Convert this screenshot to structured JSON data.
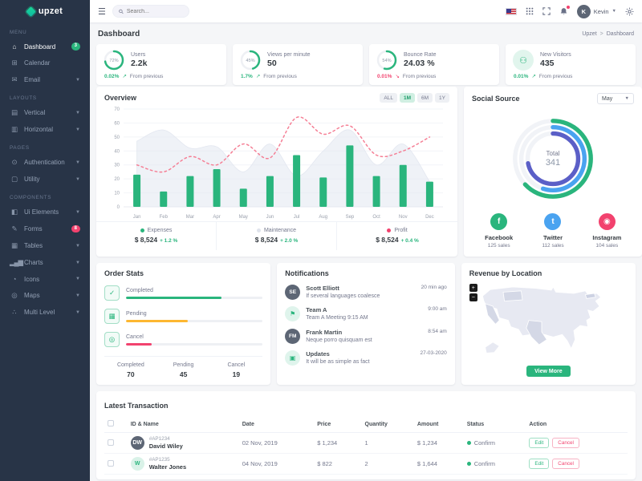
{
  "app": {
    "name": "upzet"
  },
  "colors": {
    "accent": "#2ab57d",
    "danger": "#f2426e",
    "warning": "#fdb731",
    "info": "#4aa3f0",
    "indigo": "#5b5fc7",
    "sidebar_bg": "#283447"
  },
  "topbar": {
    "search_placeholder": "Search...",
    "user_name": "Kevin"
  },
  "sidebar": {
    "sections": [
      {
        "title": "Menu",
        "items": [
          {
            "label": "Dashboard",
            "icon": "home-icon",
            "glyph": "⌂",
            "badge": "3",
            "badge_color": "#2ab57d",
            "active": true
          },
          {
            "label": "Calendar",
            "icon": "calendar-icon",
            "glyph": "⊞"
          },
          {
            "label": "Email",
            "icon": "mail-icon",
            "glyph": "✉",
            "chevron": true
          }
        ]
      },
      {
        "title": "Layouts",
        "items": [
          {
            "label": "Vertical",
            "icon": "layout-vertical-icon",
            "glyph": "▤",
            "chevron": true
          },
          {
            "label": "Horizontal",
            "icon": "layout-horizontal-icon",
            "glyph": "▥",
            "chevron": true
          }
        ]
      },
      {
        "title": "Pages",
        "items": [
          {
            "label": "Authentication",
            "icon": "authentication-icon",
            "glyph": "⊙",
            "chevron": true
          },
          {
            "label": "Utility",
            "icon": "utility-icon",
            "glyph": "▢",
            "chevron": true
          }
        ]
      },
      {
        "title": "Components",
        "items": [
          {
            "label": "Ui Elements",
            "icon": "ui-elements-icon",
            "glyph": "◧",
            "chevron": true
          },
          {
            "label": "Forms",
            "icon": "forms-icon",
            "glyph": "✎",
            "badge": "8",
            "badge_color": "#f2426e"
          },
          {
            "label": "Tables",
            "icon": "tables-icon",
            "glyph": "▦",
            "chevron": true
          },
          {
            "label": "Charts",
            "icon": "charts-icon",
            "glyph": "▂▄▆",
            "chevron": true
          },
          {
            "label": "Icons",
            "icon": "icons-icon",
            "glyph": "◔",
            "chevron": true
          },
          {
            "label": "Maps",
            "icon": "maps-icon",
            "glyph": "◎",
            "chevron": true
          },
          {
            "label": "Multi Level",
            "icon": "multi-level-icon",
            "glyph": "∴",
            "chevron": true
          }
        ]
      }
    ]
  },
  "page": {
    "title": "Dashboard",
    "breadcrumb": {
      "brand": "Upzet",
      "separator": ">",
      "current": "Dashboard"
    }
  },
  "stats": [
    {
      "label": "Users",
      "value": "2.2k",
      "indicator": {
        "type": "ring",
        "percent": 72,
        "text": "72%"
      },
      "delta": "0.02%",
      "delta_dir": "up",
      "note": "From previous"
    },
    {
      "label": "Views per minute",
      "value": "50",
      "indicator": {
        "type": "ring",
        "percent": 45,
        "text": "45%"
      },
      "delta": "1.7%",
      "delta_dir": "up",
      "note": "From previous"
    },
    {
      "label": "Bounce Rate",
      "value": "24.03 %",
      "indicator": {
        "type": "ring",
        "percent": 54,
        "text": "54%"
      },
      "delta": "0.01%",
      "delta_dir": "down",
      "note": "From previous"
    },
    {
      "label": "New Visitors",
      "value": "435",
      "indicator": {
        "type": "icon",
        "icon": "users-icon",
        "glyph": "⚇"
      },
      "delta": "0.01%",
      "delta_dir": "up",
      "note": "From previous"
    }
  ],
  "overview": {
    "title": "Overview",
    "ranges": [
      "ALL",
      "1M",
      "6M",
      "1Y"
    ],
    "active_range": "1M",
    "legend": [
      {
        "name": "Expenses",
        "value": "$ 8,524",
        "delta": "+ 1.2 %",
        "color": "#2ab57d"
      },
      {
        "name": "Maintenance",
        "value": "$ 8,524",
        "delta": "+ 2.0 %",
        "color": "#dfe3ec"
      },
      {
        "name": "Profit",
        "value": "$ 8,524",
        "delta": "+ 0.4 %",
        "color": "#f2426e"
      }
    ]
  },
  "chart_data": {
    "type": "mixed",
    "title": "Overview",
    "categories": [
      "Jan",
      "Feb",
      "Mar",
      "Apr",
      "May",
      "Jun",
      "Jul",
      "Aug",
      "Sep",
      "Oct",
      "Nov",
      "Dec"
    ],
    "ylim": [
      0,
      70
    ],
    "yticks": [
      0,
      10,
      20,
      30,
      40,
      50,
      60,
      70
    ],
    "grid": true,
    "legend_position": "bottom",
    "series": [
      {
        "name": "Expenses",
        "type": "bar",
        "color": "#2ab57d",
        "values": [
          23,
          11,
          22,
          27,
          13,
          22,
          37,
          21,
          44,
          22,
          30,
          18
        ]
      },
      {
        "name": "Maintenance",
        "type": "area",
        "color": "#e9edf4",
        "values": [
          47,
          55,
          42,
          43,
          25,
          45,
          22,
          40,
          55,
          30,
          45,
          18
        ]
      },
      {
        "name": "Profit",
        "type": "line-dashed",
        "color": "#f57f95",
        "values": [
          30,
          25,
          36,
          30,
          45,
          35,
          64,
          52,
          58,
          37,
          40,
          50
        ]
      }
    ]
  },
  "social": {
    "title": "Social Source",
    "month": "May",
    "chart": {
      "type": "radial",
      "total_label": "Total",
      "total": "341",
      "arcs": [
        {
          "name": "Facebook",
          "percent": 63,
          "color": "#2ab57d"
        },
        {
          "name": "Twitter",
          "percent": 55,
          "color": "#4aa3f0"
        },
        {
          "name": "Instagram",
          "percent": 72,
          "color": "#5b5fc7"
        }
      ]
    },
    "platforms": [
      {
        "name": "Facebook",
        "sales": "125 sales",
        "color": "#2ab57d",
        "glyph": "f",
        "icon": "facebook-icon"
      },
      {
        "name": "Twitter",
        "sales": "112 sales",
        "color": "#4aa3f0",
        "glyph": "t",
        "icon": "twitter-icon"
      },
      {
        "name": "Instagram",
        "sales": "104 sales",
        "color": "#f2426e",
        "glyph": "◉",
        "icon": "instagram-icon"
      }
    ]
  },
  "order_stats": {
    "title": "Order Stats",
    "items": [
      {
        "label": "Completed",
        "percent": 70,
        "color": "#2ab57d",
        "glyph": "✓",
        "icon": "check-circle-icon"
      },
      {
        "label": "Pending",
        "percent": 45,
        "color": "#fdb731",
        "glyph": "▦",
        "icon": "calendar-icon"
      },
      {
        "label": "Cancel",
        "percent": 19,
        "color": "#f2426e",
        "glyph": "◎",
        "icon": "target-icon"
      }
    ],
    "footer": [
      {
        "label": "Completed",
        "value": "70"
      },
      {
        "label": "Pending",
        "value": "45"
      },
      {
        "label": "Cancel",
        "value": "19"
      }
    ]
  },
  "notifications": {
    "title": "Notifications",
    "items": [
      {
        "name": "Scott Elliott",
        "desc": "If several languages coalesce",
        "time": "20 min ago",
        "kind": "photo",
        "avatar": "SE"
      },
      {
        "name": "Team A",
        "desc": "Team A Meeting 9:15 AM",
        "time": "9:00 am",
        "kind": "icon",
        "glyph": "⚑",
        "icon": "team-icon"
      },
      {
        "name": "Frank Martin",
        "desc": "Neque porro quisquam est",
        "time": "8:54 am",
        "kind": "photo",
        "avatar": "FM"
      },
      {
        "name": "Updates",
        "desc": "It will be as simple as fact",
        "time": "27-03-2020",
        "kind": "icon",
        "glyph": "▣",
        "icon": "updates-icon"
      }
    ]
  },
  "revenue": {
    "title": "Revenue by Location",
    "zoom_in": "+",
    "zoom_out": "−",
    "button": "View More"
  },
  "transactions": {
    "title": "Latest Transaction",
    "columns": [
      "ID & Name",
      "Date",
      "Price",
      "Quantity",
      "Amount",
      "Status",
      "Action"
    ],
    "actions": [
      "Edit",
      "Cancel"
    ],
    "rows": [
      {
        "id": "#AP1234",
        "name": "David Wiley",
        "kind": "photo",
        "avatar": "DW",
        "date": "02 Nov, 2019",
        "price": "$ 1,234",
        "quantity": "1",
        "amount": "$ 1,234",
        "status": "Confirm"
      },
      {
        "id": "#AP1235",
        "name": "Walter Jones",
        "kind": "initial",
        "avatar": "W",
        "date": "04 Nov, 2019",
        "price": "$ 822",
        "quantity": "2",
        "amount": "$ 1,644",
        "status": "Confirm"
      }
    ]
  }
}
